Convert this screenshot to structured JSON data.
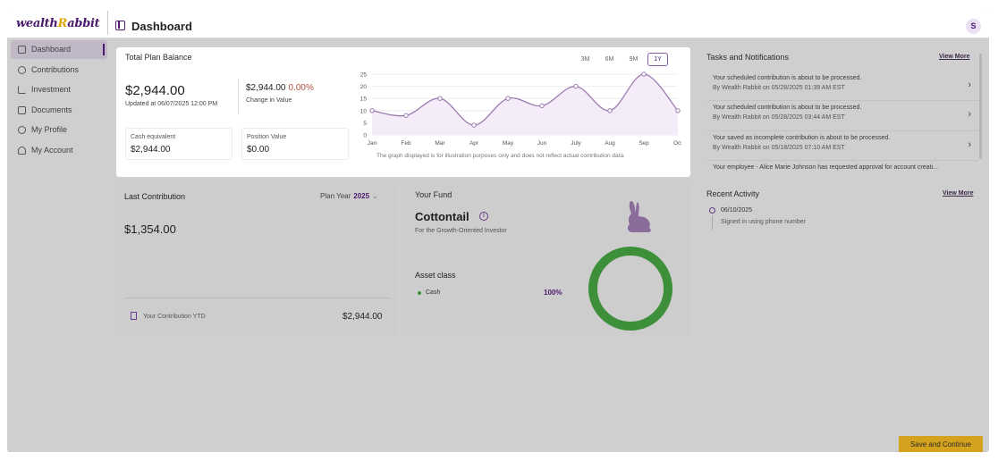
{
  "app": {
    "logo_main": "wealth",
    "logo_accent": "R",
    "logo_tail": "abbit"
  },
  "header": {
    "title": "Dashboard",
    "avatar_initial": "S"
  },
  "sidebar": {
    "items": [
      {
        "label": "Dashboard",
        "icon": "grid-icon",
        "active": true
      },
      {
        "label": "Contributions",
        "icon": "coins-icon"
      },
      {
        "label": "Investment",
        "icon": "bar-chart-icon"
      },
      {
        "label": "Documents",
        "icon": "document-icon"
      },
      {
        "label": "My Profile",
        "icon": "profile-icon"
      },
      {
        "label": "My Account",
        "icon": "account-icon"
      }
    ]
  },
  "plan_balance": {
    "title": "Total Plan Balance",
    "periods": [
      "3M",
      "6M",
      "9M",
      "1Y"
    ],
    "active_period": "1Y",
    "balance": "$2,944.00",
    "updated": "Updated at 06/07/2025 12:00 PM",
    "balance_secondary": "$2,944.00",
    "change_pct": "0.00%",
    "change_label": "Change in Value",
    "cash_label": "Cash equivalent",
    "cash_value": "$2,944.00",
    "position_label": "Position Value",
    "position_value": "$0.00",
    "disclaimer": "The graph displayed is for illustration purposes only and does not reflect actual contribution data."
  },
  "chart_data": {
    "type": "line",
    "categories": [
      "Jan",
      "Feb",
      "Mar",
      "Apr",
      "May",
      "Jun",
      "July",
      "Aug",
      "Sep",
      "Oct"
    ],
    "values": [
      10,
      8,
      15,
      4,
      15,
      12,
      20,
      10,
      25,
      10
    ],
    "yticks": [
      0,
      5,
      10,
      15,
      20,
      25
    ],
    "ylim": [
      0,
      25
    ],
    "title": "",
    "xlabel": "",
    "ylabel": "",
    "grid": true,
    "line_color": "#9b7bb0",
    "fill_color": "#f4ecf8"
  },
  "tasks": {
    "title": "Tasks and Notifications",
    "view_more": "View More",
    "items": [
      {
        "message": "Your scheduled contribution is about to be processed.",
        "by": "By Wealth Rabbit on 05/28/2025 01:39 AM EST"
      },
      {
        "message": "Your scheduled contribution is about to be processed.",
        "by": "By Wealth Rabbit on 05/28/2025 03:44 AM EST"
      },
      {
        "message": "Your saved as incomplete contribution is about to be processed.",
        "by": "By Wealth Rabbit on 05/18/2025 07:10 AM EST"
      },
      {
        "message": "Your employee - Alice Marie Johnson has requested approval for account creati...",
        "by": ""
      }
    ]
  },
  "last_contribution": {
    "title": "Last Contribution",
    "plan_year_label": "Plan Year",
    "plan_year": "2025",
    "amount": "$1,354.00",
    "ytd_label": "Your Contribution YTD",
    "ytd_amount": "$2,944.00"
  },
  "fund": {
    "title": "Your Fund",
    "name": "Cottontail",
    "subtitle": "For the Growth-Oriented Investor",
    "asset_title": "Asset class",
    "assets": [
      {
        "name": "Cash",
        "pct": "100%",
        "fraction": 1.0,
        "color": "#3e8f3a"
      }
    ]
  },
  "activity": {
    "title": "Recent Activity",
    "view_more": "View More",
    "items": [
      {
        "date": "06/10/2025",
        "desc": "Signed in using phone number"
      }
    ]
  },
  "footer": {
    "save_label": "Save and Continue"
  }
}
